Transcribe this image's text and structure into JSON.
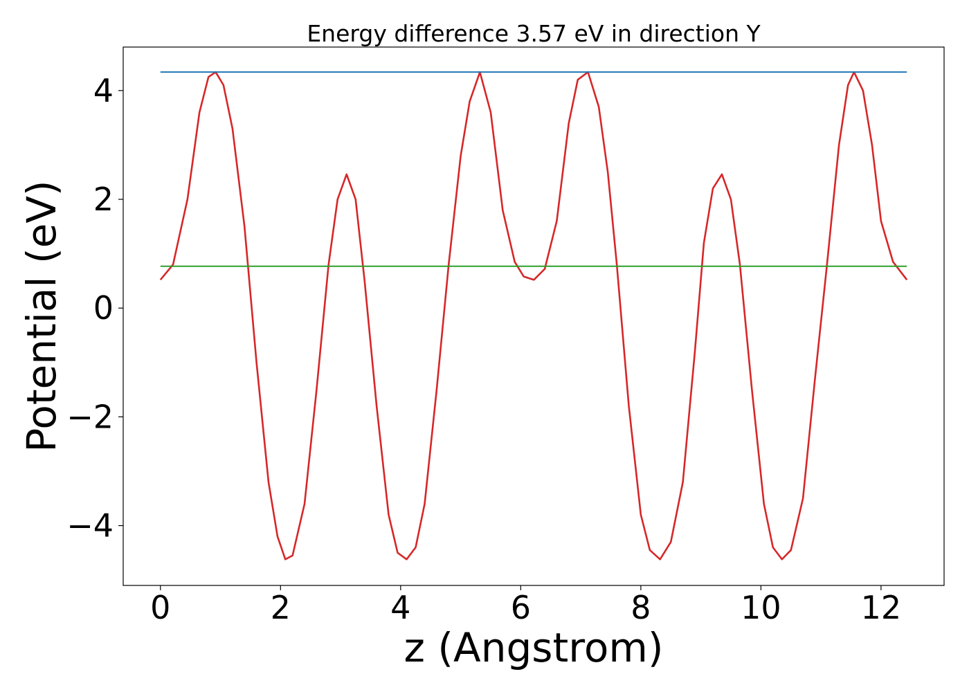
{
  "chart_data": {
    "type": "line",
    "title": "Energy difference 3.57 eV in direction Y",
    "xlabel": "z (Angstrom)",
    "ylabel": "Potential (eV)",
    "xlim": [
      -0.62,
      13.05
    ],
    "ylim": [
      -5.1,
      4.8
    ],
    "xticks": [
      0,
      2,
      4,
      6,
      8,
      10,
      12
    ],
    "xtick_labels": [
      "0",
      "2",
      "4",
      "6",
      "8",
      "10",
      "12"
    ],
    "yticks": [
      -4,
      -2,
      0,
      2,
      4
    ],
    "ytick_labels": [
      "−4",
      "−2",
      "0",
      "2",
      "4"
    ],
    "grid": false,
    "legend": false,
    "series": [
      {
        "color": "#d62728",
        "x": [
          0.0,
          0.21,
          0.45,
          0.65,
          0.8,
          0.92,
          1.05,
          1.2,
          1.4,
          1.6,
          1.8,
          1.95,
          2.08,
          2.2,
          2.4,
          2.6,
          2.8,
          2.95,
          3.1,
          3.25,
          3.4,
          3.6,
          3.8,
          3.95,
          4.1,
          4.25,
          4.4,
          4.6,
          4.8,
          5.0,
          5.15,
          5.32,
          5.5,
          5.7,
          5.9,
          6.05,
          6.22,
          6.4,
          6.6,
          6.8,
          6.95,
          7.12,
          7.3,
          7.45,
          7.6,
          7.8,
          8.0,
          8.15,
          8.32,
          8.5,
          8.7,
          8.9,
          9.05,
          9.2,
          9.35,
          9.5,
          9.65,
          9.85,
          10.05,
          10.2,
          10.35,
          10.5,
          10.7,
          10.9,
          11.1,
          11.3,
          11.45,
          11.55,
          11.7,
          11.85,
          12.0,
          12.2,
          12.43
        ],
        "y": [
          0.52,
          0.8,
          2.0,
          3.6,
          4.25,
          4.34,
          4.1,
          3.3,
          1.5,
          -1.0,
          -3.2,
          -4.2,
          -4.62,
          -4.55,
          -3.6,
          -1.5,
          0.8,
          2.0,
          2.46,
          2.0,
          0.5,
          -1.8,
          -3.8,
          -4.5,
          -4.62,
          -4.4,
          -3.6,
          -1.5,
          0.8,
          2.8,
          3.8,
          4.34,
          3.6,
          1.8,
          0.85,
          0.58,
          0.52,
          0.72,
          1.6,
          3.4,
          4.2,
          4.34,
          3.7,
          2.5,
          0.8,
          -1.8,
          -3.8,
          -4.45,
          -4.62,
          -4.3,
          -3.2,
          -0.8,
          1.2,
          2.2,
          2.46,
          2.0,
          0.8,
          -1.5,
          -3.6,
          -4.4,
          -4.62,
          -4.45,
          -3.5,
          -1.3,
          0.8,
          3.0,
          4.1,
          4.34,
          4.0,
          3.0,
          1.6,
          0.85,
          0.52
        ]
      },
      {
        "color": "#1f77b4",
        "x": [
          0.0,
          12.43
        ],
        "y": [
          4.34,
          4.34
        ]
      },
      {
        "color": "#2ca02c",
        "x": [
          0.0,
          12.43
        ],
        "y": [
          0.77,
          0.77
        ]
      }
    ]
  }
}
